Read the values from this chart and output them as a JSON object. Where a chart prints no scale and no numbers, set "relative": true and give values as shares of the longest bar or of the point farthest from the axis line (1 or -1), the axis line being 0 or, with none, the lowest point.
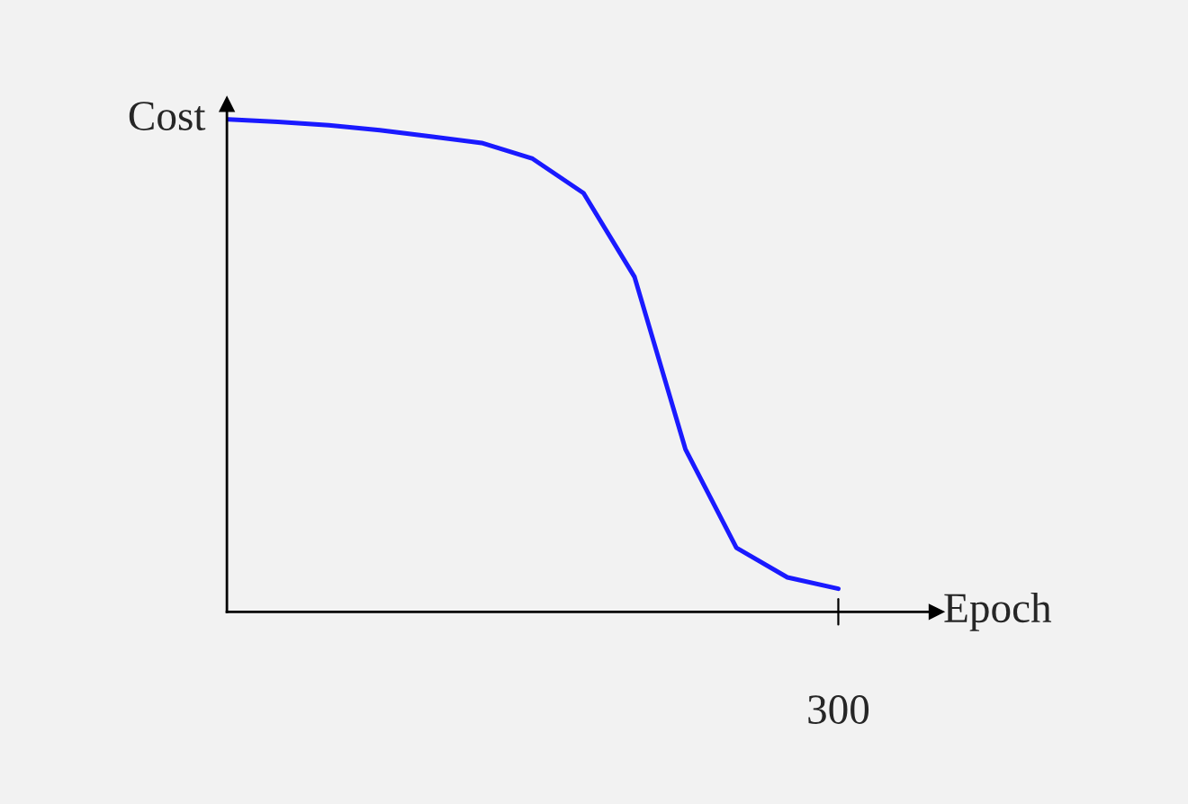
{
  "chart_data": {
    "type": "line",
    "xlabel": "Epoch",
    "ylabel": "Cost",
    "relative": true,
    "annotations": [
      "300"
    ],
    "legend": false,
    "marker": "none",
    "line_style": "solid",
    "categories": [
      null,
      null,
      null,
      null,
      null,
      null,
      null,
      null,
      null,
      null,
      null,
      null,
      null
    ],
    "series": [
      {
        "color": "#1a1aff",
        "values": [
          1.0,
          0.995,
          0.988,
          0.978,
          0.965,
          0.952,
          0.92,
          0.85,
          0.68,
          0.33,
          0.13,
          0.07,
          0.047
        ]
      }
    ]
  }
}
